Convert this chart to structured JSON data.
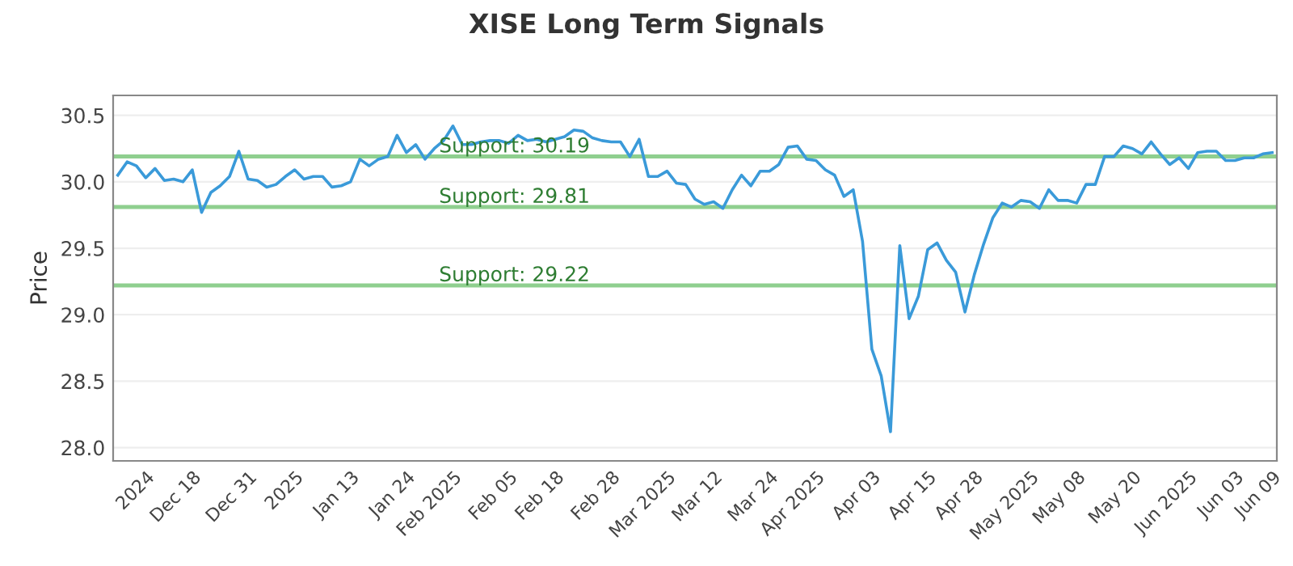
{
  "chart_data": {
    "type": "line",
    "title": "XISE Long Term Signals",
    "ylabel": "Price",
    "categories": [
      null,
      null,
      null,
      "2024",
      null,
      null,
      null,
      null,
      "Dec 18",
      null,
      null,
      null,
      null,
      null,
      "Dec 31",
      null,
      null,
      null,
      null,
      "2025",
      null,
      null,
      null,
      null,
      null,
      "Jan 13",
      null,
      null,
      null,
      null,
      null,
      "Jan 24",
      null,
      null,
      null,
      null,
      "Feb 2025",
      null,
      null,
      null,
      null,
      null,
      "Feb 05",
      null,
      null,
      null,
      null,
      "Feb 18",
      null,
      null,
      null,
      null,
      null,
      "Feb 28",
      null,
      null,
      null,
      null,
      null,
      "Mar 2025",
      null,
      null,
      null,
      null,
      "Mar 12",
      null,
      null,
      null,
      null,
      null,
      "Mar 24",
      null,
      null,
      null,
      null,
      "Apr 2025",
      null,
      null,
      null,
      null,
      null,
      "Apr 03",
      null,
      null,
      null,
      null,
      null,
      "Apr 15",
      null,
      null,
      null,
      null,
      "Apr 28",
      null,
      null,
      null,
      null,
      null,
      "May 2025",
      null,
      null,
      null,
      null,
      "May 08",
      null,
      null,
      null,
      null,
      null,
      "May 20",
      null,
      null,
      null,
      null,
      null,
      "Jun 2025",
      null,
      null,
      null,
      null,
      "Jun 03",
      null,
      null,
      null,
      "Jun 09"
    ],
    "series": [
      {
        "color": "#3a9ad9",
        "values": [
          30.05,
          30.15,
          30.12,
          30.03,
          30.1,
          30.01,
          30.02,
          30.0,
          30.09,
          29.77,
          29.92,
          29.97,
          30.04,
          30.23,
          30.02,
          30.01,
          29.96,
          29.98,
          30.04,
          30.09,
          30.02,
          30.04,
          30.04,
          29.96,
          29.97,
          30.0,
          30.17,
          30.12,
          30.17,
          30.19,
          30.35,
          30.22,
          30.28,
          30.17,
          30.25,
          30.31,
          30.42,
          30.28,
          30.28,
          30.3,
          30.31,
          30.31,
          30.29,
          30.35,
          30.31,
          30.32,
          30.3,
          30.32,
          30.34,
          30.39,
          30.38,
          30.33,
          30.31,
          30.3,
          30.3,
          30.19,
          30.32,
          30.04,
          30.04,
          30.08,
          29.99,
          29.98,
          29.87,
          29.83,
          29.85,
          29.8,
          29.94,
          30.05,
          29.97,
          30.08,
          30.08,
          30.13,
          30.26,
          30.27,
          30.17,
          30.16,
          30.09,
          30.05,
          29.89,
          29.94,
          29.55,
          28.74,
          28.54,
          28.12,
          29.52,
          28.97,
          29.14,
          29.49,
          29.54,
          29.41,
          29.32,
          29.02,
          29.3,
          29.53,
          29.73,
          29.84,
          29.81,
          29.86,
          29.85,
          29.8,
          29.94,
          29.86,
          29.86,
          29.84,
          29.98,
          29.98,
          30.19,
          30.19,
          30.27,
          30.25,
          30.21,
          30.3,
          30.21,
          30.13,
          30.18,
          30.1,
          30.22,
          30.23,
          30.23,
          30.16,
          30.16,
          30.18,
          30.18,
          30.21,
          30.22
        ]
      }
    ],
    "ylim": [
      27.9,
      30.65
    ],
    "yticks": [
      {
        "value": 28.0,
        "label": "28.0"
      },
      {
        "value": 28.5,
        "label": "28.5"
      },
      {
        "value": 29.0,
        "label": "29.0"
      },
      {
        "value": 29.5,
        "label": "29.5"
      },
      {
        "value": 30.0,
        "label": "30.0"
      },
      {
        "value": 30.5,
        "label": "30.5"
      }
    ],
    "grid": "y",
    "ref_lines": [
      {
        "axis": "y",
        "value": 30.19,
        "label": "Support: 30.19",
        "color": "#8fcf8f"
      },
      {
        "axis": "y",
        "value": 29.81,
        "label": "Support: 29.81",
        "color": "#8fcf8f"
      },
      {
        "axis": "y",
        "value": 29.22,
        "label": "Support: 29.22",
        "color": "#8fcf8f"
      }
    ]
  }
}
